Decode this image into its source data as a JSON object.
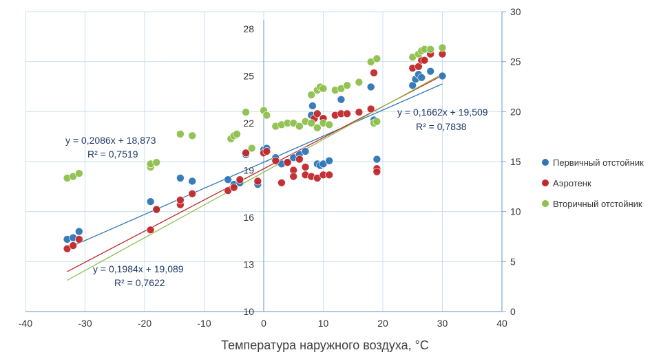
{
  "chart_data": {
    "type": "scatter",
    "xlabel": "Температура наружного воздуха, °С",
    "ylabel": "",
    "xlim": [
      -40,
      40
    ],
    "xticks": [
      -40,
      -30,
      -20,
      -10,
      0,
      10,
      20,
      30,
      40
    ],
    "ylim_left": [
      10,
      28
    ],
    "yticks_left": [
      10,
      13,
      16,
      19,
      22,
      25,
      28
    ],
    "ylim_right": [
      0,
      30
    ],
    "yticks_right": [
      0,
      5,
      10,
      15,
      20,
      25,
      30
    ],
    "grid": true,
    "legend_position": "right",
    "series": [
      {
        "name": "Первичный отстойник",
        "color": "#2e75b6",
        "points": [
          [
            -33,
            14.6
          ],
          [
            -32,
            14.7
          ],
          [
            -31,
            15.1
          ],
          [
            -19,
            17.0
          ],
          [
            -18,
            16.5
          ],
          [
            -14,
            18.5
          ],
          [
            -12,
            18.3
          ],
          [
            -6,
            18.4
          ],
          [
            -5,
            18.1
          ],
          [
            -4,
            18.2
          ],
          [
            -3,
            20.0
          ],
          [
            -1,
            18.1
          ],
          [
            0,
            20.3
          ],
          [
            0.5,
            20.4
          ],
          [
            2,
            19.8
          ],
          [
            3,
            19.4
          ],
          [
            4,
            19.5
          ],
          [
            5,
            19.8
          ],
          [
            6,
            20.0
          ],
          [
            7,
            20.2
          ],
          [
            8,
            22.5
          ],
          [
            8.2,
            23.1
          ],
          [
            9,
            19.4
          ],
          [
            9.5,
            19.3
          ],
          [
            10,
            19.4
          ],
          [
            11,
            19.6
          ],
          [
            10,
            22.3
          ],
          [
            13,
            23.5
          ],
          [
            18,
            24.3
          ],
          [
            18.5,
            22.2
          ],
          [
            19,
            19.7
          ],
          [
            25,
            24.4
          ],
          [
            25.5,
            24.8
          ],
          [
            26,
            25.1
          ],
          [
            26.5,
            24.9
          ],
          [
            28,
            25.3
          ],
          [
            30,
            25.0
          ]
        ]
      },
      {
        "name": "Аэротенк",
        "color": "#c0282a",
        "points": [
          [
            -33,
            14.0
          ],
          [
            -32,
            14.2
          ],
          [
            -31,
            14.6
          ],
          [
            -19,
            15.2
          ],
          [
            -18,
            16.5
          ],
          [
            -14,
            16.8
          ],
          [
            -14,
            17.1
          ],
          [
            -12,
            17.5
          ],
          [
            -6,
            17.7
          ],
          [
            -5,
            17.9
          ],
          [
            -4,
            18.4
          ],
          [
            -3,
            20.1
          ],
          [
            -1,
            18.3
          ],
          [
            0,
            20.1
          ],
          [
            0.5,
            20.2
          ],
          [
            2,
            19.6
          ],
          [
            3,
            18.2
          ],
          [
            4,
            19.5
          ],
          [
            5,
            19.0
          ],
          [
            5,
            18.6
          ],
          [
            6,
            19.7
          ],
          [
            7,
            19.2
          ],
          [
            7,
            18.7
          ],
          [
            8,
            18.6
          ],
          [
            9,
            18.5
          ],
          [
            10,
            18.7
          ],
          [
            11,
            18.7
          ],
          [
            8.5,
            22.3
          ],
          [
            9,
            22.6
          ],
          [
            10,
            22.3
          ],
          [
            12,
            22.5
          ],
          [
            13,
            22.6
          ],
          [
            14,
            22.6
          ],
          [
            16,
            22.7
          ],
          [
            18,
            22.9
          ],
          [
            18.5,
            25.2
          ],
          [
            19,
            19.1
          ],
          [
            19,
            18.9
          ],
          [
            25,
            25.5
          ],
          [
            26,
            25.6
          ],
          [
            26.5,
            26.0
          ],
          [
            27,
            26.0
          ],
          [
            28,
            26.4
          ],
          [
            30,
            26.4
          ]
        ]
      },
      {
        "name": "Вторичный отстойник",
        "color": "#8cc04b",
        "points": [
          [
            -33,
            18.5
          ],
          [
            -32,
            18.6
          ],
          [
            -31,
            18.8
          ],
          [
            -19,
            19.2
          ],
          [
            -19,
            19.4
          ],
          [
            -18,
            19.5
          ],
          [
            -14,
            21.3
          ],
          [
            -12,
            21.2
          ],
          [
            -5.5,
            21.0
          ],
          [
            -5,
            21.2
          ],
          [
            -4.5,
            21.3
          ],
          [
            -3,
            22.7
          ],
          [
            -2,
            20.4
          ],
          [
            0,
            22.8
          ],
          [
            0.5,
            22.5
          ],
          [
            2,
            21.8
          ],
          [
            3,
            21.9
          ],
          [
            4,
            22.0
          ],
          [
            5,
            22.0
          ],
          [
            6,
            21.8
          ],
          [
            7,
            22.1
          ],
          [
            8,
            22.0
          ],
          [
            9,
            21.7
          ],
          [
            10,
            22.0
          ],
          [
            11,
            21.9
          ],
          [
            8,
            23.8
          ],
          [
            9,
            24.1
          ],
          [
            9.5,
            24.3
          ],
          [
            10,
            24.2
          ],
          [
            12,
            24.1
          ],
          [
            13,
            24.2
          ],
          [
            14,
            24.4
          ],
          [
            16,
            24.6
          ],
          [
            18,
            25.9
          ],
          [
            19,
            26.1
          ],
          [
            18.5,
            22.0
          ],
          [
            19,
            22.1
          ],
          [
            25,
            26.2
          ],
          [
            26,
            26.4
          ],
          [
            26.5,
            26.6
          ],
          [
            27,
            26.7
          ],
          [
            28,
            26.7
          ],
          [
            30,
            26.8
          ]
        ]
      }
    ],
    "trendlines": [
      {
        "series": 0,
        "slope": 0.1662,
        "intercept": 19.509,
        "x_range": [
          -33,
          30
        ]
      },
      {
        "series": 1,
        "slope": 0.1984,
        "intercept": 19.089,
        "x_range": [
          -33,
          30
        ]
      },
      {
        "series": 2,
        "slope": 0.2086,
        "intercept": 18.873,
        "x_range": [
          -33,
          30
        ]
      }
    ],
    "annotations": [
      {
        "equation": "y = 0,1662x + 19,509",
        "r2": "R² = 0,7838",
        "color": "#1f3864"
      },
      {
        "equation": "y = 0,1984x + 19,089",
        "r2": "R² = 0,7622",
        "color": "#1f3864"
      },
      {
        "equation": "y = 0,2086x + 18,873",
        "r2": "R² = 0,7519",
        "color": "#1f3864"
      }
    ]
  }
}
